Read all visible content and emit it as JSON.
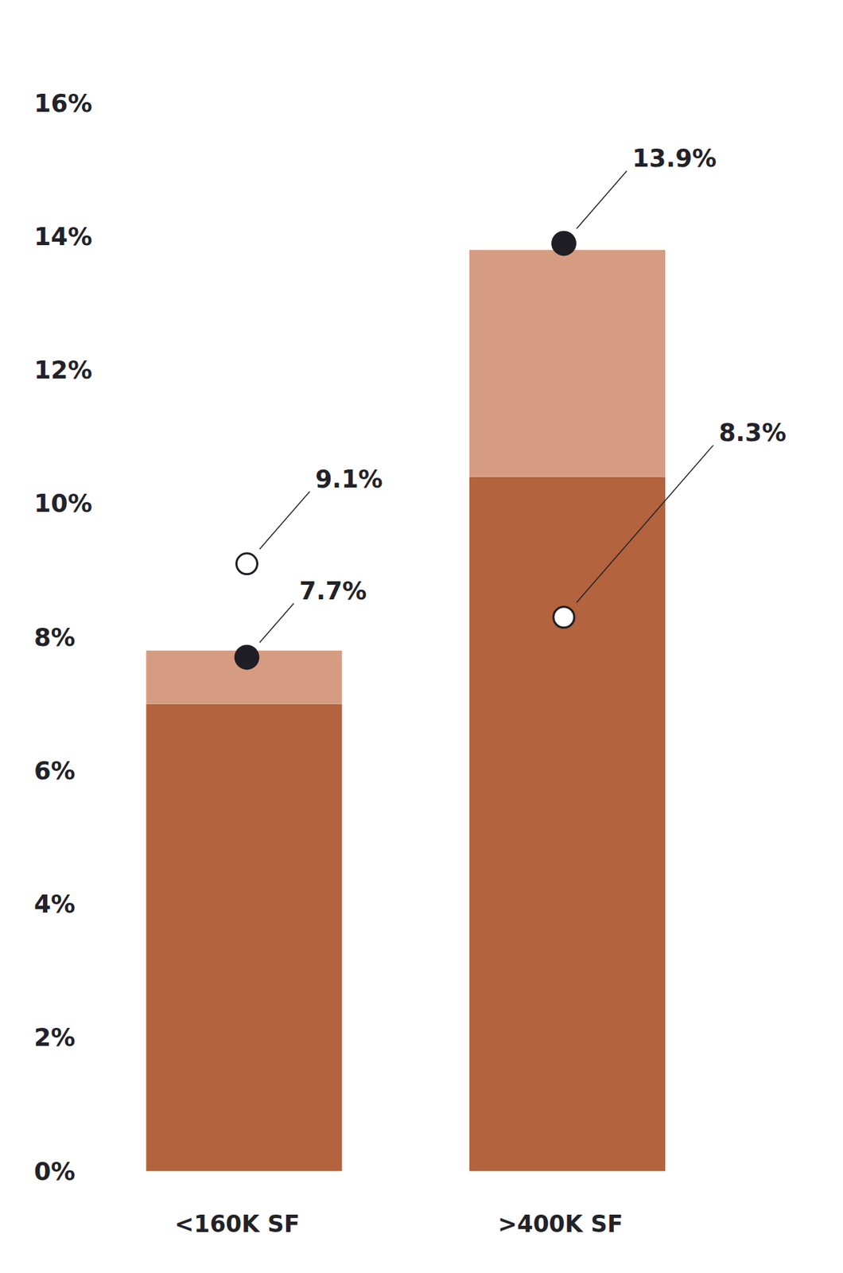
{
  "chart_data": {
    "type": "bar",
    "stacked": true,
    "data_labels": true,
    "grid": false,
    "categories": [
      "<160K SF",
      ">400K SF"
    ],
    "ylim": [
      0,
      16
    ],
    "yticks": [
      {
        "value": 0,
        "label": "0%"
      },
      {
        "value": 2,
        "label": "2%"
      },
      {
        "value": 4,
        "label": "4%"
      },
      {
        "value": 6,
        "label": "6%"
      },
      {
        "value": 8,
        "label": "8%"
      },
      {
        "value": 10,
        "label": "10%"
      },
      {
        "value": 12,
        "label": "12%"
      },
      {
        "value": 14,
        "label": "14%"
      },
      {
        "value": 16,
        "label": "16%"
      }
    ],
    "series": [
      {
        "type": "bar",
        "color": "#b3633d",
        "values": [
          7.0,
          10.4
        ]
      },
      {
        "type": "bar",
        "color": "#d69c82",
        "values": [
          0.8,
          3.4
        ]
      },
      {
        "type": "scatter",
        "marker": "filled",
        "color": "#1e1e24",
        "values": [
          7.7,
          13.9
        ],
        "value_labels": [
          "7.7%",
          "13.9%"
        ]
      },
      {
        "type": "scatter",
        "marker": "open",
        "color": "#1e1e24",
        "values": [
          9.1,
          8.3
        ],
        "value_labels": [
          "9.1%",
          "8.3%"
        ]
      }
    ]
  }
}
